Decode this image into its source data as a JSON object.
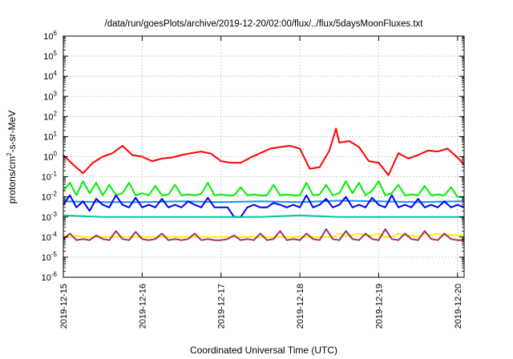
{
  "chart_data": {
    "type": "line",
    "title": "/data/run/goesPlots/archive/2019-12-20/02:00/flux/../flux/5daysMoonFluxes.txt",
    "xlabel": "Coordinated Universal Time (UTC)",
    "ylabel_main": "protons/cm",
    "ylabel_sup": "2",
    "ylabel_rest": "-s-sr-MeV",
    "y_scale": "log",
    "ylim": [
      1e-06,
      1000000.0
    ],
    "y_ticks": [
      {
        "value": 1e-06,
        "base": "10",
        "exp": "-6"
      },
      {
        "value": 1e-05,
        "base": "10",
        "exp": "-5"
      },
      {
        "value": 0.0001,
        "base": "10",
        "exp": "-4"
      },
      {
        "value": 0.001,
        "base": "10",
        "exp": "-3"
      },
      {
        "value": 0.01,
        "base": "10",
        "exp": "-2"
      },
      {
        "value": 0.1,
        "base": "10",
        "exp": "-1"
      },
      {
        "value": 1,
        "base": "10",
        "exp": "0"
      },
      {
        "value": 10,
        "base": "10",
        "exp": "1"
      },
      {
        "value": 100,
        "base": "10",
        "exp": "2"
      },
      {
        "value": 1000,
        "base": "10",
        "exp": "3"
      },
      {
        "value": 10000,
        "base": "10",
        "exp": "4"
      },
      {
        "value": 100000,
        "base": "10",
        "exp": "5"
      },
      {
        "value": 1000000,
        "base": "10",
        "exp": "6"
      }
    ],
    "x_ticks": [
      "2019-12-15",
      "2019-12-16",
      "2019-12-17",
      "2019-12-18",
      "2019-12-19",
      "2019-12-20"
    ],
    "xlim": [
      "2019-12-15T00:00",
      "2019-12-20T02:00"
    ],
    "grid": true,
    "legend": "none",
    "series": [
      {
        "color": "#ff0000",
        "x": [
          "2019-12-15T00:00",
          "2019-12-15T03:00",
          "2019-12-15T06:00",
          "2019-12-15T09:00",
          "2019-12-15T12:00",
          "2019-12-15T15:00",
          "2019-12-15T18:00",
          "2019-12-15T21:00",
          "2019-12-16T00:00",
          "2019-12-16T03:00",
          "2019-12-16T06:00",
          "2019-12-16T09:00",
          "2019-12-16T12:00",
          "2019-12-16T15:00",
          "2019-12-16T18:00",
          "2019-12-16T21:00",
          "2019-12-17T00:00",
          "2019-12-17T03:00",
          "2019-12-17T06:00",
          "2019-12-17T09:00",
          "2019-12-17T12:00",
          "2019-12-17T15:00",
          "2019-12-17T18:00",
          "2019-12-17T21:00",
          "2019-12-18T00:00",
          "2019-12-18T03:00",
          "2019-12-18T06:00",
          "2019-12-18T09:00",
          "2019-12-18T11:00",
          "2019-12-18T12:00",
          "2019-12-18T15:00",
          "2019-12-18T18:00",
          "2019-12-18T21:00",
          "2019-12-19T00:00",
          "2019-12-19T03:00",
          "2019-12-19T06:00",
          "2019-12-19T09:00",
          "2019-12-19T12:00",
          "2019-12-19T15:00",
          "2019-12-19T18:00",
          "2019-12-19T21:00",
          "2019-12-20T00:00",
          "2019-12-20T02:00"
        ],
        "y": [
          1.2,
          0.4,
          0.15,
          0.5,
          1.0,
          1.5,
          3.5,
          1.2,
          1.0,
          0.6,
          0.8,
          0.9,
          1.2,
          1.5,
          1.8,
          1.4,
          0.6,
          0.5,
          0.5,
          0.9,
          1.5,
          2.5,
          3.0,
          3.5,
          2.5,
          0.25,
          0.3,
          2.0,
          25,
          5.0,
          6.0,
          3.0,
          0.6,
          0.5,
          0.12,
          1.5,
          0.8,
          1.2,
          2.0,
          1.8,
          2.5,
          0.9,
          0.4
        ]
      },
      {
        "color": "#00ee00",
        "x": [
          "2019-12-15T00:00",
          "2019-12-15T02:00",
          "2019-12-15T04:00",
          "2019-12-15T06:00",
          "2019-12-15T08:00",
          "2019-12-15T10:00",
          "2019-12-15T12:00",
          "2019-12-15T14:00",
          "2019-12-15T16:00",
          "2019-12-15T18:00",
          "2019-12-15T20:00",
          "2019-12-15T22:00",
          "2019-12-16T00:00",
          "2019-12-16T02:00",
          "2019-12-16T04:00",
          "2019-12-16T06:00",
          "2019-12-16T08:00",
          "2019-12-16T10:00",
          "2019-12-16T12:00",
          "2019-12-16T14:00",
          "2019-12-16T16:00",
          "2019-12-16T18:00",
          "2019-12-16T20:00",
          "2019-12-16T22:00",
          "2019-12-17T00:00",
          "2019-12-17T02:00",
          "2019-12-17T04:00",
          "2019-12-17T06:00",
          "2019-12-17T08:00",
          "2019-12-17T10:00",
          "2019-12-17T12:00",
          "2019-12-17T14:00",
          "2019-12-17T16:00",
          "2019-12-17T18:00",
          "2019-12-17T20:00",
          "2019-12-17T22:00",
          "2019-12-18T00:00",
          "2019-12-18T02:00",
          "2019-12-18T04:00",
          "2019-12-18T06:00",
          "2019-12-18T08:00",
          "2019-12-18T10:00",
          "2019-12-18T12:00",
          "2019-12-18T14:00",
          "2019-12-18T16:00",
          "2019-12-18T18:00",
          "2019-12-18T20:00",
          "2019-12-18T22:00",
          "2019-12-19T00:00",
          "2019-12-19T02:00",
          "2019-12-19T04:00",
          "2019-12-19T06:00",
          "2019-12-19T08:00",
          "2019-12-19T10:00",
          "2019-12-19T12:00",
          "2019-12-19T14:00",
          "2019-12-19T16:00",
          "2019-12-19T18:00",
          "2019-12-19T20:00",
          "2019-12-19T22:00",
          "2019-12-20T00:00",
          "2019-12-20T02:00"
        ],
        "y": [
          0.02,
          0.05,
          0.012,
          0.06,
          0.015,
          0.05,
          0.012,
          0.04,
          0.012,
          0.015,
          0.05,
          0.012,
          0.015,
          0.012,
          0.035,
          0.012,
          0.013,
          0.04,
          0.012,
          0.013,
          0.012,
          0.014,
          0.05,
          0.012,
          0.013,
          0.012,
          0.012,
          0.03,
          0.012,
          0.013,
          0.012,
          0.012,
          0.04,
          0.012,
          0.013,
          0.012,
          0.012,
          0.05,
          0.012,
          0.013,
          0.04,
          0.012,
          0.015,
          0.06,
          0.015,
          0.05,
          0.012,
          0.02,
          0.06,
          0.012,
          0.015,
          0.04,
          0.012,
          0.013,
          0.012,
          0.035,
          0.012,
          0.013,
          0.012,
          0.03,
          0.01,
          0.01
        ]
      },
      {
        "color": "#1a8cff",
        "x": [
          "2019-12-15T00:00",
          "2019-12-15T12:00",
          "2019-12-16T00:00",
          "2019-12-16T12:00",
          "2019-12-17T00:00",
          "2019-12-17T12:00",
          "2019-12-18T00:00",
          "2019-12-18T12:00",
          "2019-12-19T00:00",
          "2019-12-19T12:00",
          "2019-12-20T00:00",
          "2019-12-20T02:00"
        ],
        "y": [
          0.006,
          0.0055,
          0.0055,
          0.006,
          0.0055,
          0.006,
          0.0055,
          0.0065,
          0.006,
          0.0055,
          0.006,
          0.006
        ]
      },
      {
        "color": "#0000ee",
        "x": [
          "2019-12-15T00:00",
          "2019-12-15T02:00",
          "2019-12-15T04:00",
          "2019-12-15T06:00",
          "2019-12-15T08:00",
          "2019-12-15T10:00",
          "2019-12-15T12:00",
          "2019-12-15T14:00",
          "2019-12-15T16:00",
          "2019-12-15T18:00",
          "2019-12-15T20:00",
          "2019-12-15T22:00",
          "2019-12-16T00:00",
          "2019-12-16T02:00",
          "2019-12-16T04:00",
          "2019-12-16T06:00",
          "2019-12-16T08:00",
          "2019-12-16T10:00",
          "2019-12-16T12:00",
          "2019-12-16T14:00",
          "2019-12-16T16:00",
          "2019-12-16T18:00",
          "2019-12-16T20:00",
          "2019-12-16T22:00",
          "2019-12-17T00:00",
          "2019-12-17T02:00",
          "2019-12-17T04:00",
          "2019-12-17T06:00",
          "2019-12-17T08:00",
          "2019-12-17T10:00",
          "2019-12-17T12:00",
          "2019-12-17T14:00",
          "2019-12-17T16:00",
          "2019-12-17T18:00",
          "2019-12-17T20:00",
          "2019-12-17T22:00",
          "2019-12-18T00:00",
          "2019-12-18T02:00",
          "2019-12-18T04:00",
          "2019-12-18T06:00",
          "2019-12-18T08:00",
          "2019-12-18T10:00",
          "2019-12-18T12:00",
          "2019-12-18T14:00",
          "2019-12-18T16:00",
          "2019-12-18T18:00",
          "2019-12-18T20:00",
          "2019-12-18T22:00",
          "2019-12-19T00:00",
          "2019-12-19T02:00",
          "2019-12-19T04:00",
          "2019-12-19T06:00",
          "2019-12-19T08:00",
          "2019-12-19T10:00",
          "2019-12-19T12:00",
          "2019-12-19T14:00",
          "2019-12-19T16:00",
          "2019-12-19T18:00",
          "2019-12-19T20:00",
          "2019-12-19T22:00",
          "2019-12-20T00:00",
          "2019-12-20T02:00"
        ],
        "y": [
          0.004,
          0.012,
          0.003,
          0.006,
          0.002,
          0.008,
          0.004,
          0.003,
          0.012,
          0.004,
          0.003,
          0.009,
          0.003,
          0.004,
          0.003,
          0.008,
          0.003,
          0.004,
          0.003,
          0.006,
          0.004,
          0.003,
          0.009,
          0.003,
          0.003,
          0.003,
          0.001,
          0.001,
          0.003,
          0.004,
          0.003,
          0.003,
          0.005,
          0.004,
          0.003,
          0.004,
          0.003,
          0.012,
          0.003,
          0.004,
          0.008,
          0.003,
          0.004,
          0.01,
          0.003,
          0.004,
          0.003,
          0.009,
          0.004,
          0.003,
          0.012,
          0.003,
          0.004,
          0.003,
          0.008,
          0.003,
          0.004,
          0.003,
          0.006,
          0.003,
          0.004,
          0.003
        ]
      },
      {
        "color": "#00c8a0",
        "x": [
          "2019-12-15T00:00",
          "2019-12-15T12:00",
          "2019-12-16T00:00",
          "2019-12-16T12:00",
          "2019-12-17T00:00",
          "2019-12-17T12:00",
          "2019-12-18T00:00",
          "2019-12-18T12:00",
          "2019-12-19T00:00",
          "2019-12-19T12:00",
          "2019-12-20T00:00",
          "2019-12-20T02:00"
        ],
        "y": [
          0.0012,
          0.001,
          0.001,
          0.001,
          0.001,
          0.001,
          0.0012,
          0.001,
          0.001,
          0.001,
          0.001,
          0.001
        ]
      },
      {
        "color": "#ffee00",
        "x": [
          "2019-12-15T00:00",
          "2019-12-15T02:00",
          "2019-12-15T04:00",
          "2019-12-15T06:00",
          "2019-12-15T08:00",
          "2019-12-15T10:00",
          "2019-12-15T12:00",
          "2019-12-15T14:00",
          "2019-12-15T16:00",
          "2019-12-15T18:00",
          "2019-12-15T20:00",
          "2019-12-15T22:00",
          "2019-12-16T00:00",
          "2019-12-16T02:00",
          "2019-12-16T04:00",
          "2019-12-16T06:00",
          "2019-12-16T08:00",
          "2019-12-16T10:00",
          "2019-12-16T12:00",
          "2019-12-16T14:00",
          "2019-12-16T16:00",
          "2019-12-16T18:00",
          "2019-12-16T20:00",
          "2019-12-16T22:00",
          "2019-12-17T00:00",
          "2019-12-17T02:00",
          "2019-12-17T04:00",
          "2019-12-17T06:00",
          "2019-12-17T08:00",
          "2019-12-17T10:00",
          "2019-12-17T12:00",
          "2019-12-17T14:00",
          "2019-12-17T16:00",
          "2019-12-17T18:00",
          "2019-12-17T20:00",
          "2019-12-17T22:00",
          "2019-12-18T00:00",
          "2019-12-18T02:00",
          "2019-12-18T04:00",
          "2019-12-18T06:00",
          "2019-12-18T08:00",
          "2019-12-18T10:00",
          "2019-12-18T12:00",
          "2019-12-18T14:00",
          "2019-12-18T16:00",
          "2019-12-18T18:00",
          "2019-12-18T20:00",
          "2019-12-18T22:00",
          "2019-12-19T00:00",
          "2019-12-19T02:00",
          "2019-12-19T04:00",
          "2019-12-19T06:00",
          "2019-12-19T08:00",
          "2019-12-19T10:00",
          "2019-12-19T12:00",
          "2019-12-19T14:00",
          "2019-12-19T16:00",
          "2019-12-19T18:00",
          "2019-12-19T20:00",
          "2019-12-19T22:00",
          "2019-12-20T00:00",
          "2019-12-20T02:00"
        ],
        "y": [
          0.00012,
          0.0001,
          0.00012,
          0.0001,
          0.0001,
          0.0001,
          0.0001,
          0.0001,
          0.0001,
          0.0001,
          0.0001,
          0.0001,
          0.0001,
          0.0001,
          0.0001,
          0.0001,
          0.0001,
          0.0001,
          0.0001,
          0.0001,
          0.0001,
          0.0001,
          0.0001,
          0.0001,
          0.0001,
          0.0001,
          0.0001,
          0.0001,
          0.0001,
          0.0001,
          0.0001,
          0.0001,
          0.0001,
          0.0001,
          0.0001,
          0.0001,
          0.0001,
          0.0001,
          0.0001,
          0.0001,
          0.0001,
          0.0001,
          0.00015,
          0.00012,
          0.00012,
          0.00015,
          0.00012,
          0.00012,
          0.00015,
          0.0001,
          0.0001,
          0.00015,
          0.00012,
          0.00012,
          0.0001,
          0.00015,
          0.00012,
          0.00015,
          0.00012,
          0.00013,
          0.00012,
          0.00012
        ]
      },
      {
        "color": "#993366",
        "x": [
          "2019-12-15T00:00",
          "2019-12-15T02:00",
          "2019-12-15T04:00",
          "2019-12-15T06:00",
          "2019-12-15T08:00",
          "2019-12-15T10:00",
          "2019-12-15T12:00",
          "2019-12-15T14:00",
          "2019-12-15T16:00",
          "2019-12-15T18:00",
          "2019-12-15T20:00",
          "2019-12-15T22:00",
          "2019-12-16T00:00",
          "2019-12-16T02:00",
          "2019-12-16T04:00",
          "2019-12-16T06:00",
          "2019-12-16T08:00",
          "2019-12-16T10:00",
          "2019-12-16T12:00",
          "2019-12-16T14:00",
          "2019-12-16T16:00",
          "2019-12-16T18:00",
          "2019-12-16T20:00",
          "2019-12-16T22:00",
          "2019-12-17T00:00",
          "2019-12-17T02:00",
          "2019-12-17T04:00",
          "2019-12-17T06:00",
          "2019-12-17T08:00",
          "2019-12-17T10:00",
          "2019-12-17T12:00",
          "2019-12-17T14:00",
          "2019-12-17T16:00",
          "2019-12-17T18:00",
          "2019-12-17T20:00",
          "2019-12-17T22:00",
          "2019-12-18T00:00",
          "2019-12-18T02:00",
          "2019-12-18T04:00",
          "2019-12-18T06:00",
          "2019-12-18T08:00",
          "2019-12-18T10:00",
          "2019-12-18T12:00",
          "2019-12-18T14:00",
          "2019-12-18T16:00",
          "2019-12-18T18:00",
          "2019-12-18T20:00",
          "2019-12-18T22:00",
          "2019-12-19T00:00",
          "2019-12-19T02:00",
          "2019-12-19T04:00",
          "2019-12-19T06:00",
          "2019-12-19T08:00",
          "2019-12-19T10:00",
          "2019-12-19T12:00",
          "2019-12-19T14:00",
          "2019-12-19T16:00",
          "2019-12-19T18:00",
          "2019-12-19T20:00",
          "2019-12-19T22:00",
          "2019-12-20T00:00",
          "2019-12-20T02:00"
        ],
        "y": [
          8e-05,
          0.00015,
          7e-05,
          8e-05,
          7e-05,
          0.00012,
          8e-05,
          7e-05,
          0.0002,
          8e-05,
          7e-05,
          0.00018,
          8e-05,
          7e-05,
          8e-05,
          0.00015,
          7e-05,
          8e-05,
          7e-05,
          8e-05,
          0.00015,
          7e-05,
          8e-05,
          7e-05,
          7e-05,
          8e-05,
          0.00012,
          7e-05,
          8e-05,
          7e-05,
          0.00015,
          7e-05,
          8e-05,
          0.0002,
          7e-05,
          8e-05,
          7e-05,
          0.00015,
          8e-05,
          7e-05,
          0.00025,
          8e-05,
          7e-05,
          0.0002,
          8e-05,
          7e-05,
          0.00015,
          8e-05,
          7e-05,
          0.00025,
          8e-05,
          7e-05,
          0.00015,
          8e-05,
          7e-05,
          0.0002,
          8e-05,
          7e-05,
          0.00015,
          8e-05,
          7e-05,
          7e-05
        ]
      }
    ]
  }
}
